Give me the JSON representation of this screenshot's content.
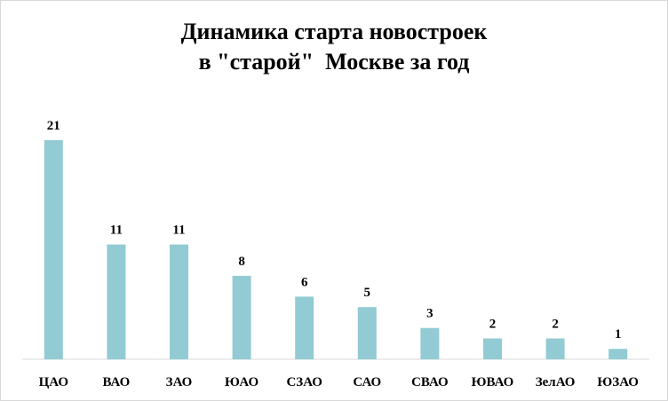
{
  "chart_data": {
    "type": "bar",
    "title_line1": "Динамика старта новостроек",
    "title_line2": "в \"старой\"  Москве за год",
    "categories": [
      "ЦАО",
      "ВАО",
      "ЗАО",
      "ЮАО",
      "СЗАО",
      "САО",
      "СВАО",
      "ЮВАО",
      "ЗелАО",
      "ЮЗАО"
    ],
    "values": [
      21,
      11,
      11,
      8,
      6,
      5,
      3,
      2,
      2,
      1
    ],
    "data_labels": [
      "21",
      "11",
      "11",
      "8",
      "6",
      "5",
      "3",
      "2",
      "2",
      "1"
    ],
    "xlabel": "",
    "ylabel": "",
    "ylim": [
      0,
      21
    ],
    "bar_color": "#92CBD3",
    "axis_color": "#D9D9D9",
    "grid": false,
    "legend": "none"
  }
}
